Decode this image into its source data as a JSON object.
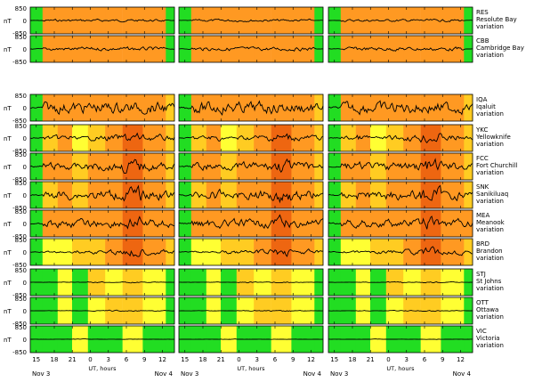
{
  "chart_data": {
    "type": "line",
    "description_units": "nT",
    "ylim": [
      -850,
      850
    ],
    "ytick_labels": [
      "850",
      "0",
      "-850"
    ],
    "ylabel": "nT",
    "xlabel": "UT, hours",
    "x_tick_labels": [
      "15",
      "18",
      "21",
      "0",
      "3",
      "6",
      "9",
      "12"
    ],
    "x_ticks_hours": [
      15,
      18,
      21,
      24,
      27,
      30,
      33,
      36
    ],
    "x_range_hours": [
      14,
      38
    ],
    "date_labels": [
      "Nov  3",
      "Nov  4"
    ],
    "activity_colors": {
      "quiet": "#22dd22",
      "unsettled": "#ffff33",
      "active": "#ffcc22",
      "storm": "#ff9922",
      "major": "#ee6611"
    },
    "columns": [
      "column-1",
      "column-2",
      "column-3"
    ],
    "stations": [
      {
        "code": "RES",
        "name": "Resolute Bay",
        "suffix": "variation",
        "group": 1,
        "amp": 0.12,
        "activity": [
          [
            "quiet",
            "storm",
            "storm",
            "storm",
            "storm",
            "storm",
            "storm",
            "storm",
            "quiet"
          ],
          [
            "quiet",
            "storm",
            "storm",
            "storm",
            "storm",
            "storm",
            "storm",
            "storm",
            "quiet"
          ],
          [
            "quiet",
            "storm",
            "storm",
            "storm",
            "storm",
            "storm",
            "storm",
            "storm",
            "quiet"
          ]
        ]
      },
      {
        "code": "CBB",
        "name": "Cambridge Bay",
        "suffix": "variation",
        "group": 1,
        "amp": 0.18,
        "activity": [
          [
            "quiet",
            "storm",
            "storm",
            "storm",
            "storm",
            "storm",
            "storm",
            "storm",
            "quiet"
          ],
          [
            "quiet",
            "storm",
            "storm",
            "storm",
            "storm",
            "storm",
            "storm",
            "storm",
            "quiet"
          ],
          [
            "quiet",
            "storm",
            "storm",
            "storm",
            "storm",
            "storm",
            "storm",
            "storm",
            "quiet"
          ]
        ]
      },
      {
        "code": "IQA",
        "name": "Iqaluit",
        "suffix": "variation",
        "group": 2,
        "amp": 0.55,
        "activity": [
          [
            "quiet",
            "storm",
            "storm",
            "storm",
            "storm",
            "storm",
            "storm",
            "storm",
            "active"
          ],
          [
            "quiet",
            "storm",
            "storm",
            "storm",
            "storm",
            "storm",
            "storm",
            "storm",
            "active"
          ],
          [
            "quiet",
            "storm",
            "storm",
            "storm",
            "storm",
            "storm",
            "storm",
            "storm",
            "active"
          ]
        ]
      },
      {
        "code": "YKC",
        "name": "Yellowknife",
        "suffix": "variation",
        "group": 2,
        "amp": 0.3,
        "activity": [
          [
            "quiet",
            "active",
            "storm",
            "unsettled",
            "active",
            "storm",
            "major",
            "storm",
            "active"
          ],
          [
            "quiet",
            "active",
            "storm",
            "unsettled",
            "active",
            "storm",
            "major",
            "storm",
            "active"
          ],
          [
            "quiet",
            "active",
            "storm",
            "unsettled",
            "active",
            "storm",
            "major",
            "storm",
            "active"
          ]
        ]
      },
      {
        "code": "FCC",
        "name": "Fort Churchill",
        "suffix": "variation",
        "group": 2,
        "amp": 0.4,
        "activity": [
          [
            "quiet",
            "storm",
            "storm",
            "active",
            "storm",
            "storm",
            "major",
            "storm",
            "active"
          ],
          [
            "quiet",
            "storm",
            "storm",
            "active",
            "storm",
            "storm",
            "major",
            "storm",
            "active"
          ],
          [
            "quiet",
            "storm",
            "storm",
            "active",
            "storm",
            "storm",
            "major",
            "storm",
            "active"
          ]
        ]
      },
      {
        "code": "SNK",
        "name": "Sanikiluaq",
        "suffix": "variation",
        "group": 2,
        "amp": 0.45,
        "activity": [
          [
            "quiet",
            "active",
            "storm",
            "active",
            "storm",
            "storm",
            "major",
            "storm",
            "active"
          ],
          [
            "quiet",
            "active",
            "storm",
            "active",
            "storm",
            "storm",
            "major",
            "storm",
            "active"
          ],
          [
            "quiet",
            "active",
            "storm",
            "active",
            "storm",
            "storm",
            "major",
            "storm",
            "active"
          ]
        ]
      },
      {
        "code": "MEA",
        "name": "Meanook",
        "suffix": "variation",
        "group": 2,
        "amp": 0.4,
        "activity": [
          [
            "quiet",
            "storm",
            "storm",
            "storm",
            "storm",
            "storm",
            "major",
            "storm",
            "storm"
          ],
          [
            "quiet",
            "storm",
            "storm",
            "storm",
            "storm",
            "storm",
            "major",
            "storm",
            "storm"
          ],
          [
            "quiet",
            "storm",
            "storm",
            "storm",
            "storm",
            "storm",
            "major",
            "storm",
            "storm"
          ]
        ]
      },
      {
        "code": "BRD",
        "name": "Brandon",
        "suffix": "variation",
        "group": 2,
        "amp": 0.25,
        "activity": [
          [
            "quiet",
            "unsettled",
            "unsettled",
            "active",
            "active",
            "storm",
            "major",
            "storm",
            "active"
          ],
          [
            "quiet",
            "unsettled",
            "unsettled",
            "active",
            "active",
            "storm",
            "major",
            "storm",
            "active"
          ],
          [
            "quiet",
            "unsettled",
            "unsettled",
            "active",
            "active",
            "storm",
            "major",
            "storm",
            "active"
          ]
        ]
      },
      {
        "code": "STJ",
        "name": "St Johns",
        "suffix": "variation",
        "group": 2,
        "amp": 0.08,
        "activity": [
          [
            "quiet",
            "quiet",
            "unsettled",
            "quiet",
            "active",
            "unsettled",
            "active",
            "unsettled",
            "quiet"
          ],
          [
            "quiet",
            "quiet",
            "unsettled",
            "quiet",
            "active",
            "unsettled",
            "active",
            "unsettled",
            "quiet"
          ],
          [
            "quiet",
            "quiet",
            "unsettled",
            "quiet",
            "active",
            "unsettled",
            "active",
            "unsettled",
            "quiet"
          ]
        ]
      },
      {
        "code": "OTT",
        "name": "Ottawa",
        "suffix": "variation",
        "group": 2,
        "amp": 0.08,
        "activity": [
          [
            "quiet",
            "quiet",
            "unsettled",
            "quiet",
            "unsettled",
            "active",
            "active",
            "unsettled",
            "quiet"
          ],
          [
            "quiet",
            "quiet",
            "unsettled",
            "quiet",
            "unsettled",
            "active",
            "active",
            "unsettled",
            "quiet"
          ],
          [
            "quiet",
            "quiet",
            "unsettled",
            "quiet",
            "unsettled",
            "active",
            "active",
            "unsettled",
            "quiet"
          ]
        ]
      },
      {
        "code": "VIC",
        "name": "Victoria",
        "suffix": "variation",
        "group": 2,
        "amp": 0.06,
        "activity": [
          [
            "quiet",
            "quiet",
            "quiet",
            "unsettled",
            "quiet",
            "quiet",
            "unsettled",
            "quiet",
            "quiet"
          ],
          [
            "quiet",
            "quiet",
            "quiet",
            "unsettled",
            "quiet",
            "quiet",
            "unsettled",
            "quiet",
            "quiet"
          ],
          [
            "quiet",
            "quiet",
            "quiet",
            "unsettled",
            "quiet",
            "quiet",
            "unsettled",
            "quiet",
            "quiet"
          ]
        ]
      }
    ]
  }
}
